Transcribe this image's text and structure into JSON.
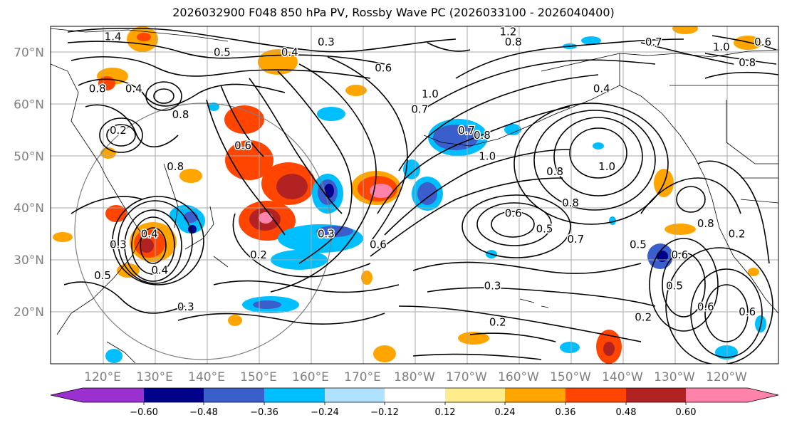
{
  "title": "2026032900 F048 850 hPa PV, Rossby Wave PC (2026033100 - 2026040400)",
  "latitude_labels": [
    "70°N",
    "60°N",
    "50°N",
    "40°N",
    "30°N",
    "20°N"
  ],
  "latitude_values": [
    70,
    60,
    50,
    40,
    30,
    20
  ],
  "longitude_labels": [
    "120°E",
    "130°E",
    "140°E",
    "150°E",
    "160°E",
    "170°E",
    "180°W",
    "170°W",
    "160°W",
    "150°W",
    "140°W",
    "130°W",
    "120°W"
  ],
  "colorbar": {
    "ticks": [
      "−0.60",
      "−0.48",
      "−0.36",
      "−0.24",
      "−0.12",
      "0.12",
      "0.24",
      "0.36",
      "0.48",
      "0.60"
    ],
    "colors": [
      "#9b30d0",
      "#00008b",
      "#3a5fcd",
      "#00bfff",
      "#b0e2ff",
      "#ffffff",
      "#ffec8b",
      "#ffa500",
      "#ff4500",
      "#b22222",
      "#ff82ab"
    ]
  },
  "contour_labels": [
    {
      "text": "1.4",
      "lon": 122,
      "lat": 73
    },
    {
      "text": "0.8",
      "lon": 119,
      "lat": 63
    },
    {
      "text": "0.4",
      "lon": 126,
      "lat": 63
    },
    {
      "text": "0.2",
      "lon": 123,
      "lat": 55
    },
    {
      "text": "0.5",
      "lon": 143,
      "lat": 70
    },
    {
      "text": "0.4",
      "lon": 156,
      "lat": 70
    },
    {
      "text": "0.3",
      "lon": 163,
      "lat": 72
    },
    {
      "text": "0.6",
      "lon": 174,
      "lat": 67
    },
    {
      "text": "0.8",
      "lon": 134,
      "lat": 48
    },
    {
      "text": "0.8",
      "lon": 135,
      "lat": 58
    },
    {
      "text": "0.6",
      "lon": 147,
      "lat": 52
    },
    {
      "text": "0.4",
      "lon": 129,
      "lat": 35
    },
    {
      "text": "0.3",
      "lon": 123,
      "lat": 33
    },
    {
      "text": "0.4",
      "lon": 131,
      "lat": 28
    },
    {
      "text": "0.5",
      "lon": 120,
      "lat": 27
    },
    {
      "text": "0.2",
      "lon": 150,
      "lat": 31
    },
    {
      "text": "0.3",
      "lon": 163,
      "lat": 35
    },
    {
      "text": "0.3",
      "lon": 136,
      "lat": 21
    },
    {
      "text": "0.6",
      "lon": 173,
      "lat": 33
    },
    {
      "text": "1.2",
      "lon": 198,
      "lat": 74
    },
    {
      "text": "0.8",
      "lon": 199,
      "lat": 72
    },
    {
      "text": "1.0",
      "lon": 183,
      "lat": 62
    },
    {
      "text": "0.7",
      "lon": 181,
      "lat": 59
    },
    {
      "text": "0.7",
      "lon": 190,
      "lat": 55
    },
    {
      "text": "0.8",
      "lon": 193,
      "lat": 54
    },
    {
      "text": "1.0",
      "lon": 194,
      "lat": 50
    },
    {
      "text": "0.4",
      "lon": 216,
      "lat": 63
    },
    {
      "text": "0.8",
      "lon": 207,
      "lat": 47
    },
    {
      "text": "1.0",
      "lon": 217,
      "lat": 48
    },
    {
      "text": "0.6",
      "lon": 199,
      "lat": 39
    },
    {
      "text": "0.8",
      "lon": 210,
      "lat": 41
    },
    {
      "text": "0.5",
      "lon": 205,
      "lat": 36
    },
    {
      "text": "0.7",
      "lon": 211,
      "lat": 34
    },
    {
      "text": "0.3",
      "lon": 195,
      "lat": 25
    },
    {
      "text": "0.2",
      "lon": 196,
      "lat": 18
    },
    {
      "text": "0.5",
      "lon": 223,
      "lat": 33
    },
    {
      "text": "0.2",
      "lon": 224,
      "lat": 19
    },
    {
      "text": "0.6",
      "lon": 236,
      "lat": 21
    },
    {
      "text": "0.6",
      "lon": 244,
      "lat": 20
    },
    {
      "text": "0.5",
      "lon": 230,
      "lat": 25
    },
    {
      "text": "0.6",
      "lon": 231,
      "lat": 31
    },
    {
      "text": "0.7",
      "lon": 226,
      "lat": 72
    },
    {
      "text": "1.0",
      "lon": 239,
      "lat": 71
    },
    {
      "text": "0.8",
      "lon": 244,
      "lat": 68
    },
    {
      "text": "0.6",
      "lon": 247,
      "lat": 72
    },
    {
      "text": "0.2",
      "lon": 242,
      "lat": 35
    },
    {
      "text": "0.8",
      "lon": 236,
      "lat": 37
    }
  ]
}
